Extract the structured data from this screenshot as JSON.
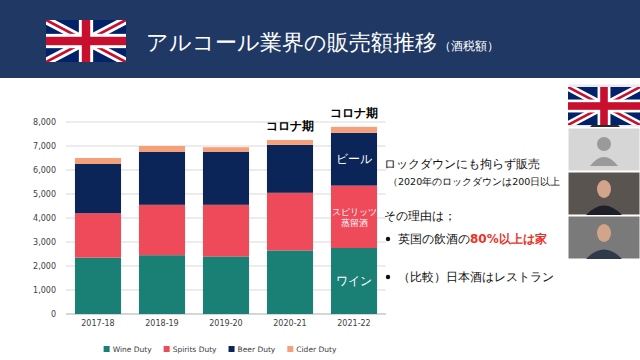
{
  "slide": {
    "title": "アルコール業界の販売額推移",
    "subtitle": "（酒税額）",
    "text_lines": [
      "ロックダウンにも拘らず販売",
      "（2020年のロックダウンは200日以上",
      "その理由は；"
    ],
    "bullets": [
      {
        "parts": [
          "英国の飲酒の",
          "80%以上は家"
        ]
      },
      {
        "parts": [
          "（比較）日本酒はレストラン"
        ]
      }
    ]
  },
  "chart_data": {
    "type": "bar",
    "stacked": true,
    "grid": true,
    "legend": "bottom",
    "categories": [
      "2017-18",
      "2018-19",
      "2019-20",
      "2020-21",
      "2021-22"
    ],
    "series": [
      {
        "name": "Wine Duty",
        "color": "#1a7f74",
        "values": [
          2350,
          2450,
          2400,
          2650,
          2750
        ]
      },
      {
        "name": "Spirits Duty",
        "color": "#ef4a5a",
        "values": [
          1850,
          2100,
          2150,
          2400,
          2600
        ]
      },
      {
        "name": "Beer Duty",
        "color": "#0b2558",
        "values": [
          2050,
          2200,
          2200,
          2000,
          2200
        ]
      },
      {
        "name": "Cider Duty",
        "color": "#f4a07a",
        "values": [
          250,
          250,
          200,
          200,
          250
        ]
      }
    ],
    "ylim": [
      0,
      8000
    ],
    "yticks": [
      0,
      {
        "value": 1000,
        "label": "1,000"
      },
      {
        "value": 2000,
        "label": "2,000"
      },
      {
        "value": 3000,
        "label": "3,000"
      },
      {
        "value": 4000,
        "label": "4,000"
      },
      {
        "value": 5000,
        "label": "5,000"
      },
      {
        "value": 6000,
        "label": "6,000"
      },
      {
        "value": 7000,
        "label": "7,000"
      },
      {
        "value": 8000,
        "label": "8,000"
      }
    ],
    "annotations": [
      {
        "text": "コロナ期",
        "category": "2020-21"
      },
      {
        "text": "コロナ期",
        "category": "2021-22"
      },
      {
        "text": "ビール",
        "category": "2021-22",
        "series": "Beer Duty"
      },
      {
        "text": "スピリッツ\n蒸留酒",
        "category": "2021-22",
        "series": "Spirits Duty"
      },
      {
        "text": "ワイン",
        "category": "2021-22",
        "series": "Wine Duty"
      }
    ]
  }
}
